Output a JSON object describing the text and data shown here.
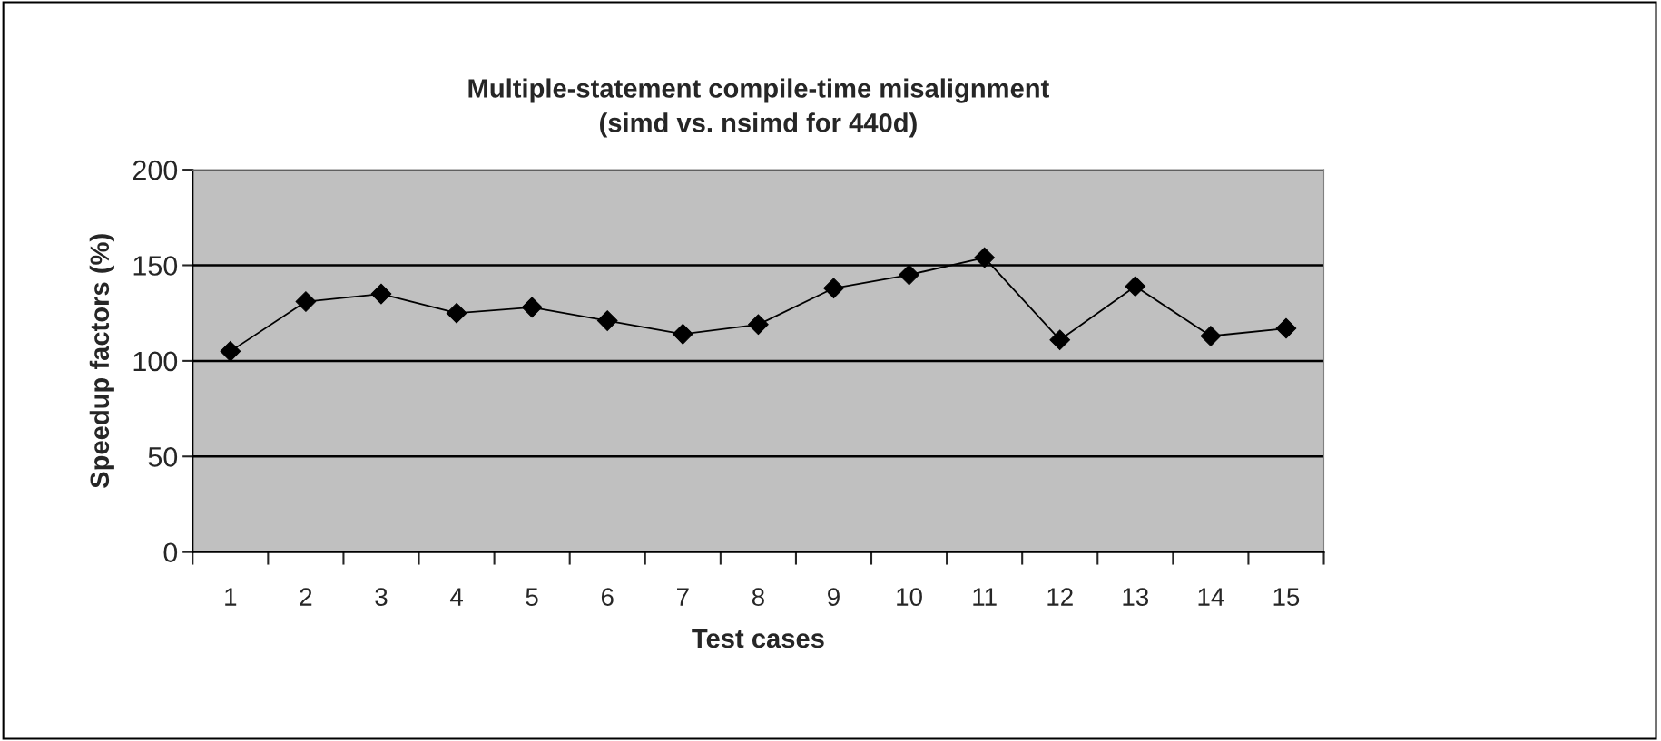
{
  "chart_data": {
    "type": "line",
    "title": "Multiple-statement compile-time misalignment\n(simd vs. nsimd for 440d)",
    "xlabel": "Test cases",
    "ylabel": "Speedup factors (%)",
    "categories": [
      "1",
      "2",
      "3",
      "4",
      "5",
      "6",
      "7",
      "8",
      "9",
      "10",
      "11",
      "12",
      "13",
      "14",
      "15"
    ],
    "series": [
      {
        "color": "#000000",
        "values": [
          105,
          131,
          135,
          125,
          128,
          121,
          114,
          119,
          138,
          145,
          154,
          111,
          139,
          113,
          117
        ]
      }
    ],
    "ylim": [
      0,
      200
    ],
    "yticks": [
      0,
      50,
      100,
      150,
      200
    ],
    "grid": "y",
    "legend": false,
    "marker": "diamond",
    "line_style": "solid"
  }
}
